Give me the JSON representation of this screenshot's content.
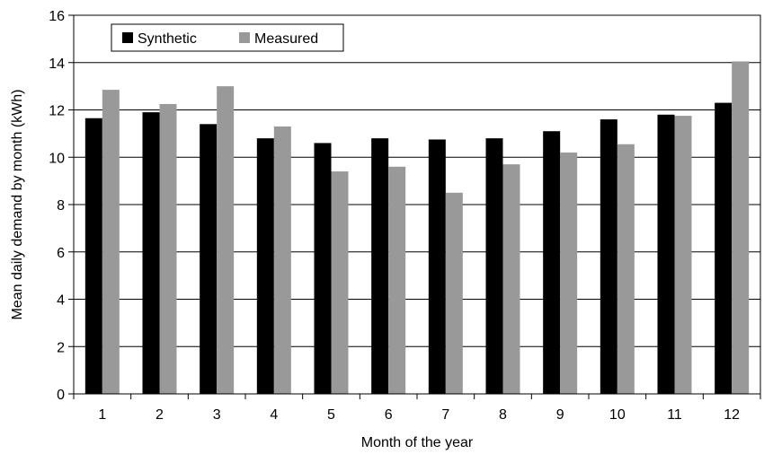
{
  "chart_data": {
    "type": "bar",
    "categories": [
      "1",
      "2",
      "3",
      "4",
      "5",
      "6",
      "7",
      "8",
      "9",
      "10",
      "11",
      "12"
    ],
    "series": [
      {
        "name": "Synthetic",
        "color": "#000000",
        "values": [
          11.65,
          11.9,
          11.4,
          10.8,
          10.6,
          10.8,
          10.75,
          10.8,
          11.1,
          11.6,
          11.8,
          12.3
        ]
      },
      {
        "name": "Measured",
        "color": "#999999",
        "values": [
          12.85,
          12.25,
          13.0,
          11.3,
          9.4,
          9.6,
          8.5,
          9.7,
          10.2,
          10.55,
          11.75,
          14.05
        ]
      }
    ],
    "xlabel": "Month of the year",
    "ylabel": "Mean daily demand by month (kWh)",
    "ylim": [
      0,
      16
    ],
    "yticks": [
      0,
      2,
      4,
      6,
      8,
      10,
      12,
      14,
      16
    ],
    "grid": true,
    "legend_position": "top-left"
  }
}
